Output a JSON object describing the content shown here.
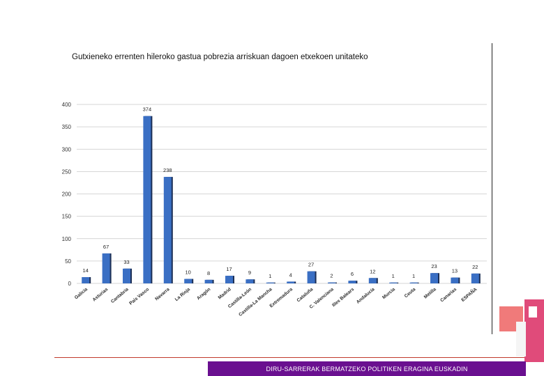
{
  "slide": {
    "title": "Gutxieneko errenten hileroko gastua pobrezia arriskuan dagoen etxekoen unitateko",
    "footer": "DIRU-SARRERAK BERMATZEKO POLITIKEN ERAGINA EUSKADIN"
  },
  "colors": {
    "bar": "#3a6fc4",
    "bar_shadow": "#1c2f55",
    "grid": "#c8c8c8",
    "footer_bg": "#6a1090",
    "rule": "#c0392b"
  },
  "chart_data": {
    "type": "bar",
    "title": "Gutxieneko errenten hileroko gastua pobrezia arriskuan dagoen etxekoen unitateko",
    "categories": [
      "Galicia",
      "Asturias",
      "Cantabria",
      "País Vasco",
      "Navarra",
      "La Rioja",
      "Aragón",
      "Madrid",
      "Castilla-León",
      "Castilla-La Mancha",
      "Extremadura",
      "Cataluña",
      "C. Valenciana",
      "Illes Balears",
      "Andalucía",
      "Murcia",
      "Ceuta",
      "Melilla",
      "Canarias",
      "ESPAÑA"
    ],
    "values": [
      14,
      67,
      33,
      374,
      238,
      10,
      8,
      17,
      9,
      1,
      4,
      27,
      2,
      6,
      12,
      1,
      1,
      23,
      13,
      22
    ],
    "ylim": [
      0,
      400
    ],
    "yticks": [
      "0",
      "50",
      "100",
      "150",
      "200",
      "250",
      "300",
      "350",
      "400"
    ],
    "grid": true,
    "xlabel": "",
    "ylabel": ""
  }
}
